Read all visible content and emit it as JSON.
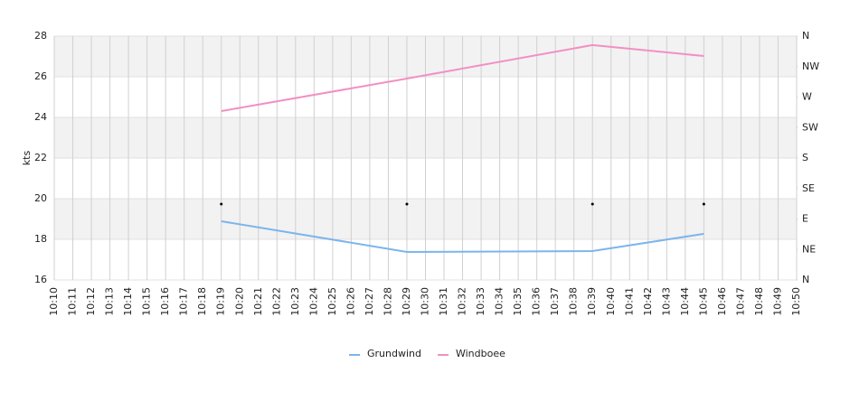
{
  "chart_data": {
    "type": "line",
    "y_label": "kts",
    "x": [
      "10:19",
      "10:29",
      "10:39",
      "10:45"
    ],
    "xlim": [
      "10:10",
      "10:50"
    ],
    "xticks": [
      "10:10",
      "10:11",
      "10:12",
      "10:13",
      "10:14",
      "10:15",
      "10:16",
      "10:17",
      "10:18",
      "10:19",
      "10:20",
      "10:21",
      "10:22",
      "10:23",
      "10:24",
      "10:25",
      "10:26",
      "10:27",
      "10:28",
      "10:29",
      "10:30",
      "10:31",
      "10:32",
      "10:33",
      "10:34",
      "10:35",
      "10:36",
      "10:37",
      "10:38",
      "10:39",
      "10:40",
      "10:41",
      "10:42",
      "10:43",
      "10:44",
      "10:45",
      "10:46",
      "10:47",
      "10:48",
      "10:49",
      "10:50"
    ],
    "ylim": [
      16,
      28
    ],
    "yticks": [
      16,
      18,
      20,
      22,
      24,
      26,
      28
    ],
    "y2lim": [
      0,
      360
    ],
    "y2ticks": [
      {
        "value": 0,
        "label": "N"
      },
      {
        "value": 45,
        "label": "NE"
      },
      {
        "value": 90,
        "label": "E"
      },
      {
        "value": 135,
        "label": "SE"
      },
      {
        "value": 180,
        "label": "S"
      },
      {
        "value": 225,
        "label": "SW"
      },
      {
        "value": 270,
        "label": "W"
      },
      {
        "value": 315,
        "label": "NW"
      },
      {
        "value": 360,
        "label": "N"
      }
    ],
    "grid": true,
    "series": [
      {
        "name": "Grundwind",
        "color": "#7cb5ec",
        "values": [
          18.89,
          17.38,
          17.42,
          18.27
        ]
      },
      {
        "name": "Windboee",
        "color": "#f28fc4",
        "values": [
          24.31,
          25.91,
          27.56,
          27.02
        ]
      },
      {
        "color": "#000000",
        "axis": "y2",
        "marker_only": true,
        "values": [
          112,
          112,
          112,
          112
        ]
      }
    ]
  }
}
